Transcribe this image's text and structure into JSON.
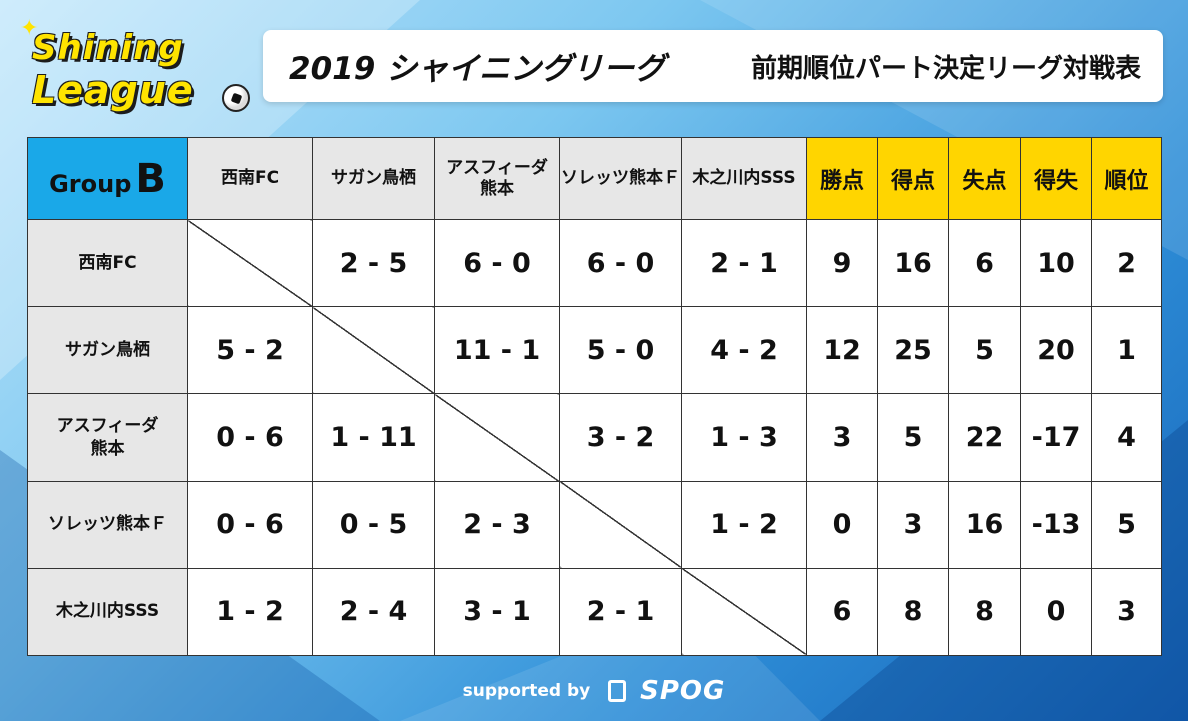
{
  "logo": {
    "line1": "Shining",
    "line2": "League"
  },
  "title": {
    "main": "2019 シャイニングリーグ",
    "sub": "前期順位パート決定リーグ対戦表"
  },
  "group": {
    "label": "Group",
    "letter": "B"
  },
  "teams_header": [
    "西南FC",
    "サガン鳥栖",
    "アスフィーダ\n熊本",
    "ソレッツ熊本Ｆ",
    "木之川内SSS"
  ],
  "stat_headers": [
    "勝点",
    "得点",
    "失点",
    "得失",
    "順位"
  ],
  "rows": [
    {
      "team": "西南FC",
      "scores": [
        "",
        "2 - 5",
        "6 - 0",
        "6 - 0",
        "2 - 1"
      ],
      "stats": [
        "9",
        "16",
        "6",
        "10",
        "2"
      ]
    },
    {
      "team": "サガン鳥栖",
      "scores": [
        "5 - 2",
        "",
        "11 - 1",
        "5 - 0",
        "4 - 2"
      ],
      "stats": [
        "12",
        "25",
        "5",
        "20",
        "1"
      ]
    },
    {
      "team": "アスフィーダ\n熊本",
      "scores": [
        "0 - 6",
        "1 - 11",
        "",
        "3 - 2",
        "1 - 3"
      ],
      "stats": [
        "3",
        "5",
        "22",
        "-17",
        "4"
      ]
    },
    {
      "team": "ソレッツ熊本Ｆ",
      "scores": [
        "0 - 6",
        "0 - 5",
        "2 - 3",
        "",
        "1 - 2"
      ],
      "stats": [
        "0",
        "3",
        "16",
        "-13",
        "5"
      ]
    },
    {
      "team": "木之川内SSS",
      "scores": [
        "1 - 2",
        "2 - 4",
        "3 - 1",
        "2 - 1",
        ""
      ],
      "stats": [
        "6",
        "8",
        "8",
        "0",
        "3"
      ]
    }
  ],
  "footer": {
    "supported_by": "supported by",
    "brand": "SPOG"
  },
  "colors": {
    "group_header": "#1aa8e8",
    "stat_header": "#ffd500",
    "team_cell": "#e7e7e7",
    "logo_yellow": "#ffe400"
  }
}
